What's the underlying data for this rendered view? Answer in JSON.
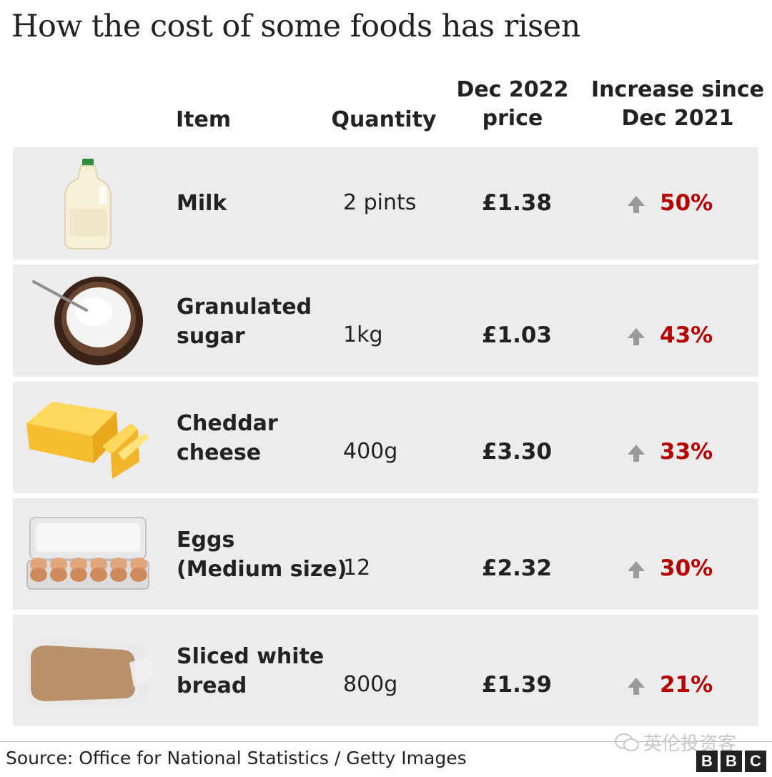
{
  "chart_data": {
    "type": "table",
    "title": "How the cost of some foods has risen",
    "columns": {
      "item": "Item",
      "quantity": "Quantity",
      "price": [
        "Dec 2022",
        "price"
      ],
      "increase": [
        "Increase since",
        "Dec 2021"
      ]
    },
    "rows": [
      {
        "item": [
          "Milk"
        ],
        "quantity": "2 pints",
        "price": "£1.38",
        "increase": "50%",
        "increase_value": 50,
        "image": "milk-bottle-icon"
      },
      {
        "item": [
          "Granulated",
          "sugar"
        ],
        "quantity": "1kg",
        "price": "£1.03",
        "increase": "43%",
        "increase_value": 43,
        "image": "sugar-bowl-icon"
      },
      {
        "item": [
          "Cheddar",
          "cheese"
        ],
        "quantity": "400g",
        "price": "£3.30",
        "increase": "33%",
        "increase_value": 33,
        "image": "cheese-block-icon"
      },
      {
        "item": [
          "Eggs",
          "(Medium size)"
        ],
        "quantity": "12",
        "price": "£2.32",
        "increase": "30%",
        "increase_value": 30,
        "image": "egg-carton-icon"
      },
      {
        "item": [
          "Sliced white",
          "bread"
        ],
        "quantity": "800g",
        "price": "£1.39",
        "increase": "21%",
        "increase_value": 21,
        "image": "bread-loaf-icon"
      }
    ],
    "colors": {
      "row_bg": "#ececec",
      "increase": "#b80000",
      "arrow": "#9a9a9a"
    }
  },
  "footer": {
    "source": "Source: Office for National Statistics / Getty Images",
    "watermark": "英伦投资客",
    "logo": [
      "B",
      "B",
      "C"
    ]
  }
}
